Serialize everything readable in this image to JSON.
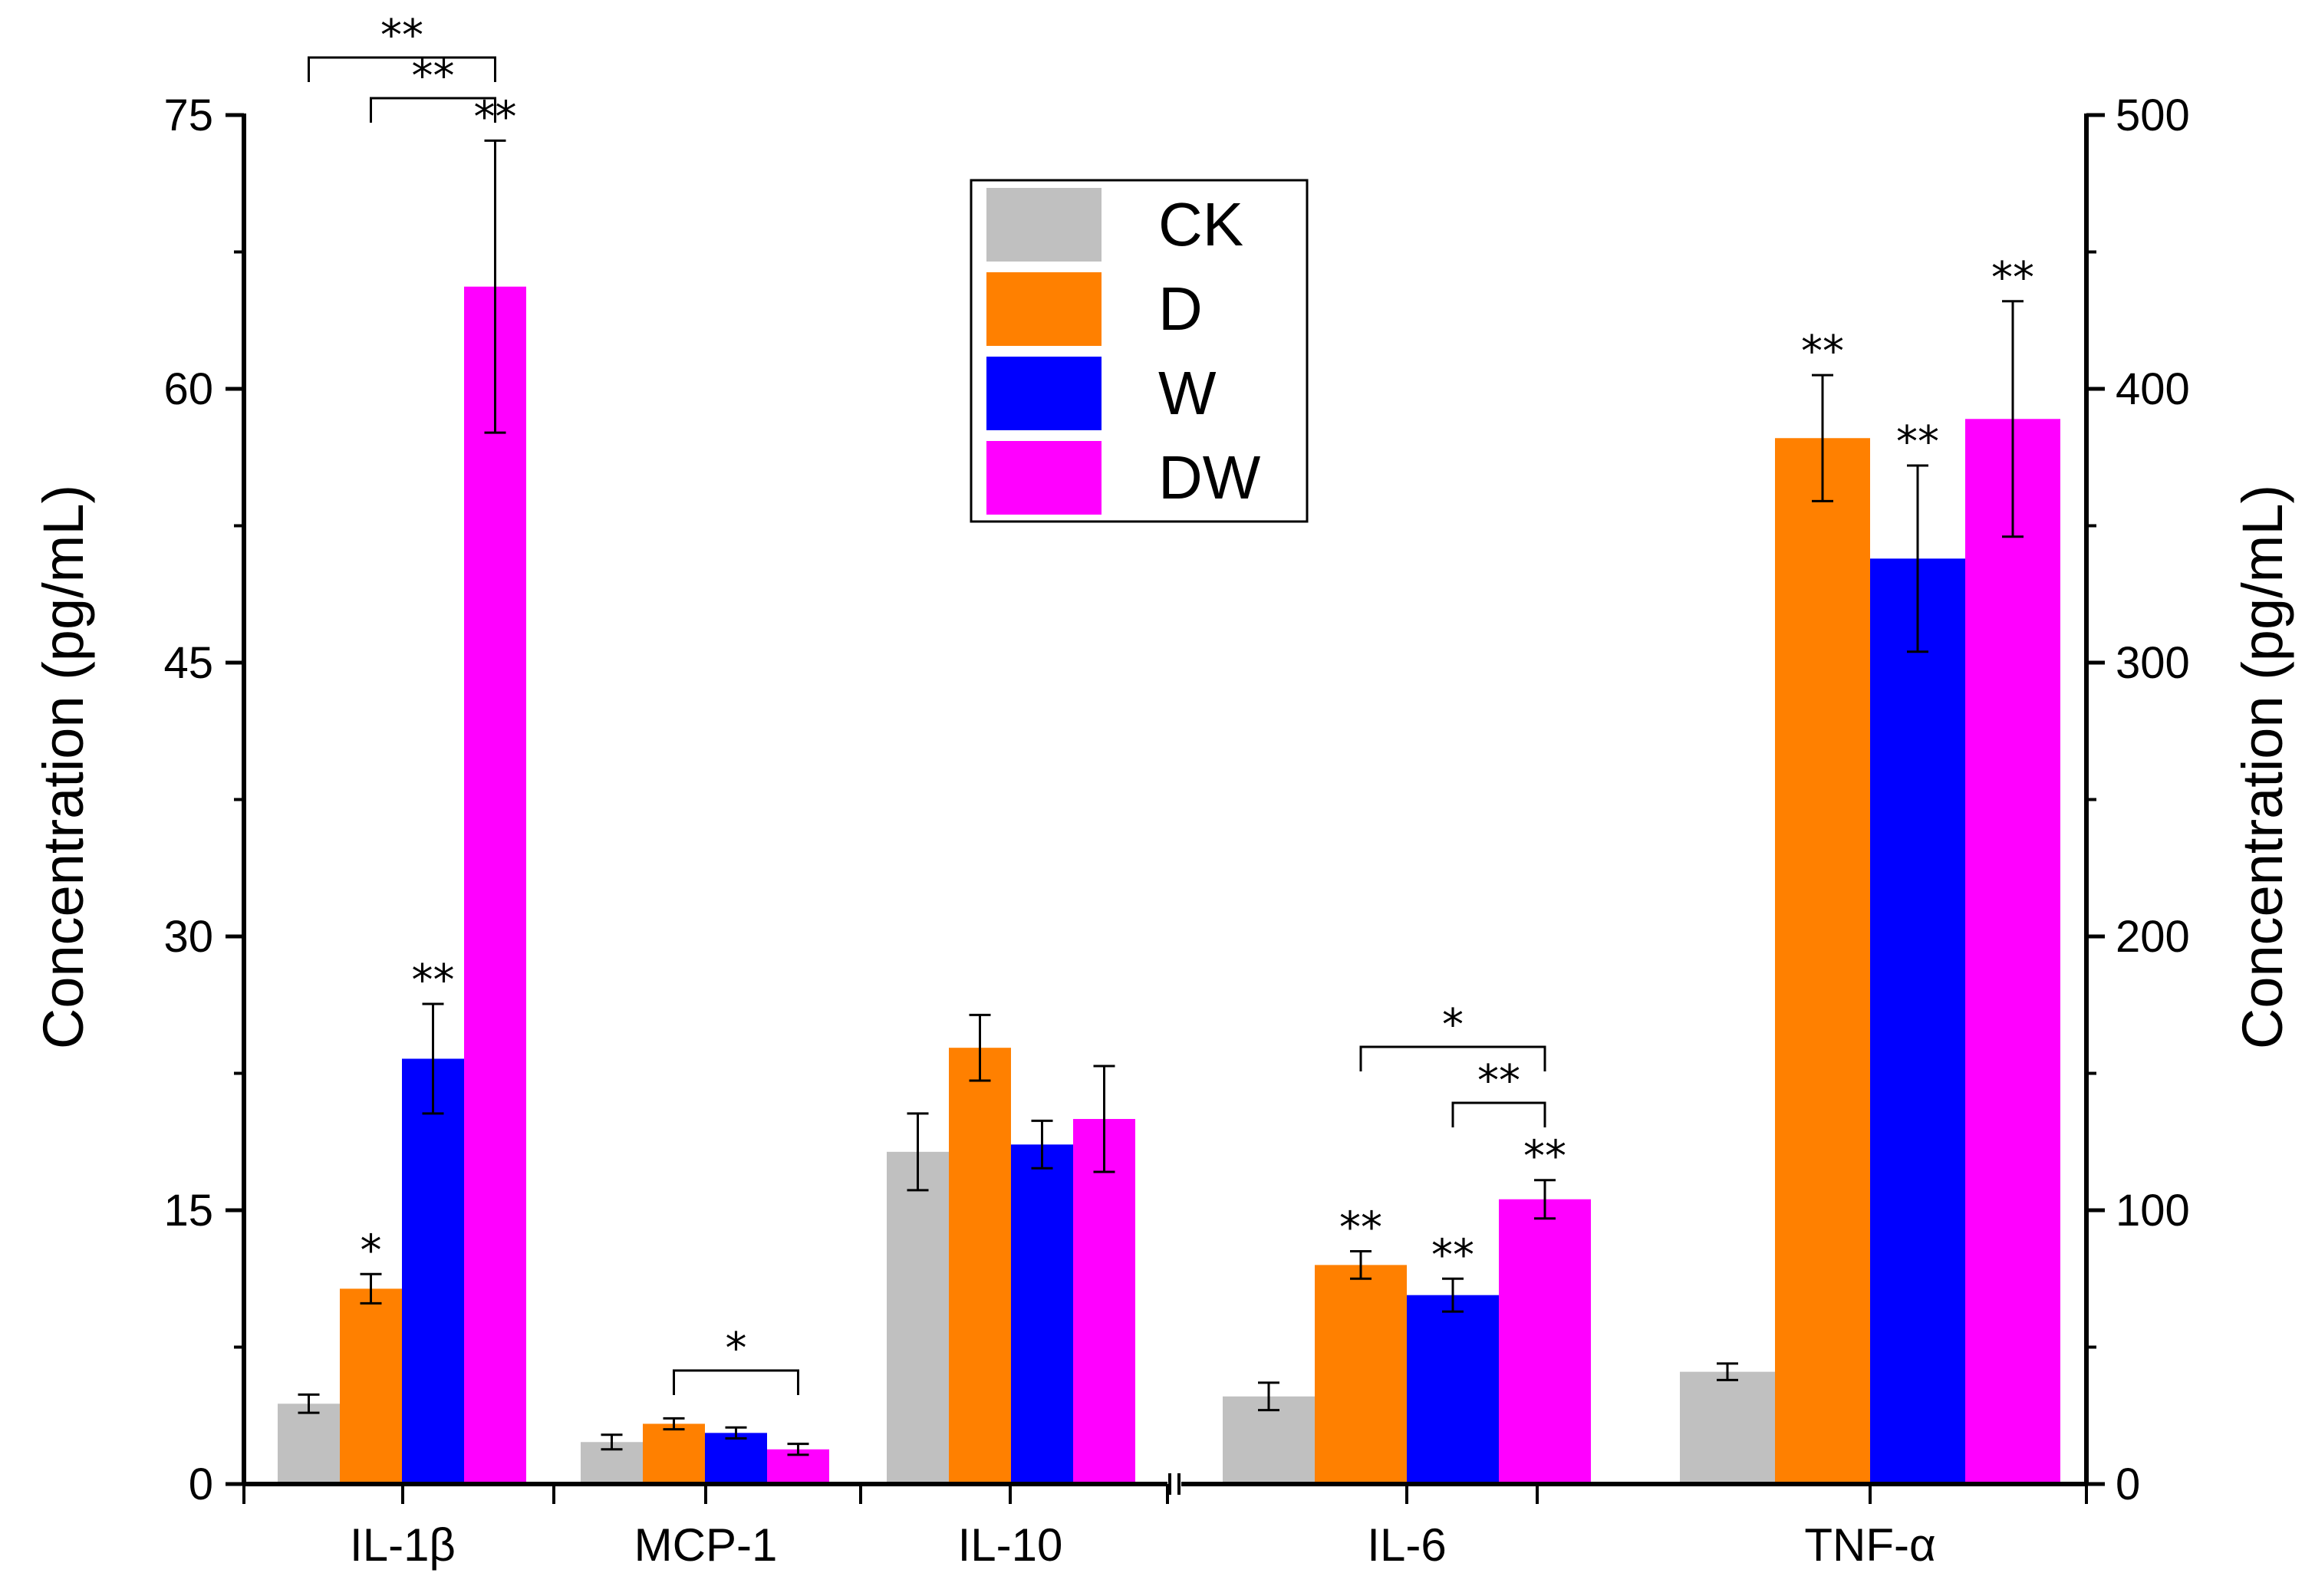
{
  "chart_data": {
    "type": "bar",
    "title": "",
    "xlabel": "",
    "ylabel": "Concentration (pg/mL)",
    "ylabel_right": "Concentration (pg/mL)",
    "ylim_left": [
      0,
      75
    ],
    "ylim_right": [
      0,
      500
    ],
    "yticks_left": [
      "0",
      "15",
      "30",
      "45",
      "60",
      "75"
    ],
    "yticks_right": [
      "0",
      "100",
      "200",
      "300",
      "400",
      "500"
    ],
    "legend_position": "top-center",
    "groups": [
      {
        "name": "IL-1β",
        "axis": "left",
        "values": [
          4.4,
          10.7,
          23.3,
          65.6
        ],
        "errors": [
          0.5,
          0.8,
          3.0,
          8.0
        ],
        "stars": [
          "",
          "*",
          "**",
          "**"
        ]
      },
      {
        "name": "MCP-1",
        "axis": "left",
        "values": [
          2.3,
          3.3,
          2.8,
          1.9
        ],
        "errors": [
          0.4,
          0.3,
          0.3,
          0.3
        ],
        "stars": [
          "",
          "",
          "",
          ""
        ]
      },
      {
        "name": "IL-10",
        "axis": "left",
        "values": [
          18.2,
          23.9,
          18.6,
          20.0
        ],
        "errors": [
          2.1,
          1.8,
          1.3,
          2.9
        ],
        "stars": [
          "",
          "",
          "",
          ""
        ]
      },
      {
        "name": "IL-6",
        "axis": "right",
        "values": [
          32,
          80,
          69,
          104
        ],
        "errors": [
          5,
          5,
          6,
          7
        ],
        "stars": [
          "",
          "**",
          "**",
          "**"
        ]
      },
      {
        "name": "TNF-α",
        "axis": "right",
        "values": [
          41,
          382,
          338,
          389
        ],
        "errors": [
          3,
          23,
          34,
          43
        ],
        "stars": [
          "",
          "**",
          "**",
          "**"
        ]
      }
    ],
    "series": [
      {
        "name": "CK",
        "color": "#c0c0c0"
      },
      {
        "name": "D",
        "color": "#ff8000"
      },
      {
        "name": "W",
        "color": "#0000ff"
      },
      {
        "name": "DW",
        "color": "#ff00ff"
      }
    ],
    "brackets": [
      {
        "group": 0,
        "from": 0,
        "to": 3,
        "label": "**"
      },
      {
        "group": 0,
        "from": 1,
        "to": 3,
        "label": "**"
      },
      {
        "group": 1,
        "from": 1,
        "to": 3,
        "label": "*"
      },
      {
        "group": 3,
        "from": 1,
        "to": 3,
        "label": "*"
      },
      {
        "group": 3,
        "from": 2,
        "to": 3,
        "label": "**"
      }
    ]
  }
}
